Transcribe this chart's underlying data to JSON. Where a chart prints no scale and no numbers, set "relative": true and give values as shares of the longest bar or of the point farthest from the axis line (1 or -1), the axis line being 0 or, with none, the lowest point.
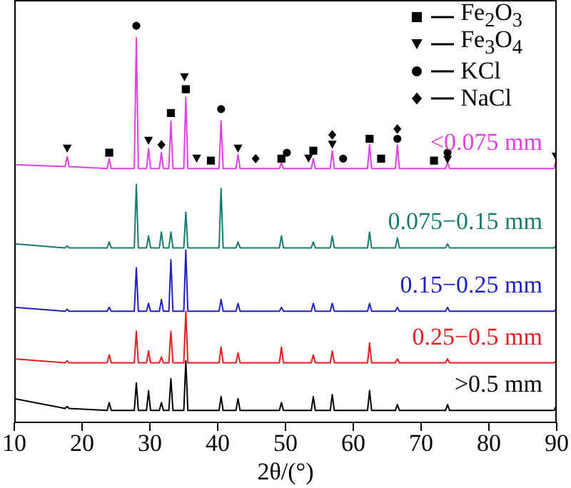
{
  "chart_data": {
    "type": "line",
    "relative": true,
    "xlabel": "2θ/(°)",
    "xlim": [
      10,
      90
    ],
    "xticks": [
      10,
      20,
      30,
      40,
      50,
      60,
      70,
      80,
      90
    ],
    "tick_labels": "x",
    "legend": "top right",
    "series": [
      {
        "name": "<0.075 mm",
        "type": "line",
        "color": "#e040e0",
        "x": [
          10,
          17.5,
          17.8,
          18.1,
          23.7,
          24.0,
          24.3,
          27.7,
          28.0,
          28.3,
          29.5,
          29.8,
          30.1,
          31.4,
          31.7,
          32.0,
          32.8,
          33.1,
          33.4,
          35.0,
          35.3,
          35.6,
          40.2,
          40.5,
          40.8,
          42.7,
          43.0,
          43.3,
          49.1,
          49.4,
          49.7,
          53.8,
          54.1,
          54.4,
          56.6,
          56.9,
          57.2,
          62.1,
          62.4,
          62.7,
          66.2,
          66.5,
          66.8,
          73.6,
          73.9,
          74.2,
          89.6,
          89.9,
          90
        ],
        "values": [
          0.65,
          0.645,
          0.67,
          0.645,
          0.64,
          0.665,
          0.64,
          0.64,
          0.97,
          0.64,
          0.64,
          0.69,
          0.64,
          0.64,
          0.68,
          0.64,
          0.64,
          0.76,
          0.64,
          0.64,
          0.82,
          0.64,
          0.64,
          0.76,
          0.64,
          0.64,
          0.675,
          0.64,
          0.64,
          0.655,
          0.64,
          0.64,
          0.665,
          0.64,
          0.64,
          0.685,
          0.64,
          0.64,
          0.7,
          0.64,
          0.64,
          0.7,
          0.64,
          0.64,
          0.655,
          0.64,
          0.64,
          0.66,
          0.64
        ]
      },
      {
        "name": "0.075−0.15 mm",
        "type": "line",
        "color": "#1a7a70",
        "x": [
          10,
          17.5,
          17.8,
          18.1,
          23.7,
          24.0,
          24.3,
          27.7,
          28.0,
          28.3,
          29.5,
          29.8,
          30.1,
          31.4,
          31.7,
          32.0,
          32.8,
          33.1,
          33.4,
          35.0,
          35.3,
          35.6,
          40.2,
          40.5,
          40.8,
          42.7,
          43.0,
          43.3,
          49.1,
          49.4,
          49.7,
          53.8,
          54.1,
          54.4,
          56.6,
          56.9,
          57.2,
          62.1,
          62.4,
          62.7,
          66.2,
          66.5,
          66.8,
          73.6,
          73.9,
          74.2,
          89.6,
          89.9,
          90
        ],
        "values": [
          0.45,
          0.44,
          0.445,
          0.44,
          0.44,
          0.455,
          0.44,
          0.44,
          0.6,
          0.44,
          0.44,
          0.47,
          0.44,
          0.44,
          0.48,
          0.44,
          0.44,
          0.48,
          0.44,
          0.44,
          0.53,
          0.44,
          0.44,
          0.59,
          0.44,
          0.44,
          0.455,
          0.44,
          0.44,
          0.47,
          0.44,
          0.44,
          0.455,
          0.44,
          0.44,
          0.47,
          0.44,
          0.44,
          0.48,
          0.44,
          0.44,
          0.465,
          0.44,
          0.44,
          0.45,
          0.44,
          0.44,
          0.445,
          0.44
        ]
      },
      {
        "name": "0.15−0.25 mm",
        "type": "line",
        "color": "#2020c0",
        "x": [
          10,
          17.5,
          17.8,
          18.1,
          23.7,
          24.0,
          24.3,
          27.7,
          28.0,
          28.3,
          29.5,
          29.8,
          30.1,
          31.4,
          31.7,
          32.0,
          32.8,
          33.1,
          33.4,
          35.0,
          35.3,
          35.6,
          40.2,
          40.5,
          40.8,
          42.7,
          43.0,
          43.3,
          49.1,
          49.4,
          49.7,
          53.8,
          54.1,
          54.4,
          56.6,
          56.9,
          57.2,
          62.1,
          62.4,
          62.7,
          66.2,
          66.5,
          66.8,
          73.6,
          73.9,
          74.2,
          89.6,
          89.9,
          90
        ],
        "values": [
          0.29,
          0.28,
          0.285,
          0.28,
          0.28,
          0.29,
          0.28,
          0.28,
          0.39,
          0.28,
          0.28,
          0.3,
          0.28,
          0.28,
          0.31,
          0.28,
          0.28,
          0.41,
          0.28,
          0.28,
          0.435,
          0.28,
          0.28,
          0.31,
          0.28,
          0.28,
          0.3,
          0.28,
          0.28,
          0.29,
          0.28,
          0.28,
          0.3,
          0.28,
          0.28,
          0.3,
          0.28,
          0.28,
          0.3,
          0.28,
          0.28,
          0.29,
          0.28,
          0.28,
          0.29,
          0.28,
          0.28,
          0.285,
          0.28
        ]
      },
      {
        "name": "0.25−0.5 mm",
        "type": "line",
        "color": "#e02020",
        "x": [
          10,
          17.5,
          17.8,
          18.1,
          23.7,
          24.0,
          24.3,
          27.7,
          28.0,
          28.3,
          29.5,
          29.8,
          30.1,
          31.4,
          31.7,
          32.0,
          32.8,
          33.1,
          33.4,
          35.0,
          35.3,
          35.6,
          40.2,
          40.5,
          40.8,
          42.7,
          43.0,
          43.3,
          49.1,
          49.4,
          49.7,
          53.8,
          54.1,
          54.4,
          56.6,
          56.9,
          57.2,
          62.1,
          62.4,
          62.7,
          66.2,
          66.5,
          66.8,
          73.6,
          73.9,
          74.2,
          89.6,
          89.9,
          90
        ],
        "values": [
          0.16,
          0.15,
          0.155,
          0.15,
          0.15,
          0.17,
          0.15,
          0.15,
          0.23,
          0.15,
          0.15,
          0.18,
          0.15,
          0.15,
          0.165,
          0.15,
          0.15,
          0.23,
          0.15,
          0.15,
          0.28,
          0.15,
          0.15,
          0.19,
          0.15,
          0.15,
          0.175,
          0.15,
          0.15,
          0.19,
          0.15,
          0.15,
          0.17,
          0.15,
          0.15,
          0.18,
          0.15,
          0.15,
          0.2,
          0.15,
          0.15,
          0.16,
          0.15,
          0.15,
          0.16,
          0.15,
          0.15,
          0.155,
          0.15
        ]
      },
      {
        "name": ">0.5 mm",
        "type": "line",
        "color": "#000000",
        "x": [
          10,
          17.5,
          17.8,
          18.1,
          23.7,
          24.0,
          24.3,
          27.7,
          28.0,
          28.3,
          29.5,
          29.8,
          30.1,
          31.4,
          31.7,
          32.0,
          32.8,
          33.1,
          33.4,
          35.0,
          35.3,
          35.6,
          40.2,
          40.5,
          40.8,
          42.7,
          43.0,
          43.3,
          49.1,
          49.4,
          49.7,
          53.8,
          54.1,
          54.4,
          56.6,
          56.9,
          57.2,
          62.1,
          62.4,
          62.7,
          66.2,
          66.5,
          66.8,
          73.6,
          73.9,
          74.2,
          89.6,
          89.9,
          90
        ],
        "values": [
          0.06,
          0.035,
          0.04,
          0.035,
          0.03,
          0.05,
          0.03,
          0.03,
          0.1,
          0.03,
          0.03,
          0.08,
          0.03,
          0.03,
          0.05,
          0.03,
          0.03,
          0.11,
          0.03,
          0.03,
          0.155,
          0.03,
          0.03,
          0.065,
          0.03,
          0.03,
          0.06,
          0.03,
          0.03,
          0.05,
          0.03,
          0.03,
          0.065,
          0.03,
          0.03,
          0.07,
          0.03,
          0.03,
          0.08,
          0.03,
          0.03,
          0.045,
          0.03,
          0.03,
          0.045,
          0.03,
          0.03,
          0.04,
          0.03
        ]
      },
      {
        "name": "Fe$_{2}$O$_{3}$",
        "type": "scatter",
        "marker": "square",
        "color": "#000000",
        "x": [
          24.0,
          33.1,
          35.3,
          39.0,
          49.4,
          54.1,
          62.4,
          64.1,
          71.9
        ],
        "values": [
          0.68,
          0.78,
          0.84,
          0.66,
          0.665,
          0.685,
          0.715,
          0.665,
          0.66
        ]
      },
      {
        "name": "Fe$_{3}$O$_{4}$",
        "type": "scatter",
        "marker": "triangle",
        "color": "#000000",
        "x": [
          17.8,
          29.8,
          35.1,
          36.9,
          43.0,
          53.4,
          56.9,
          73.9,
          89.9
        ],
        "values": [
          0.69,
          0.71,
          0.87,
          0.665,
          0.69,
          0.665,
          0.7,
          0.662,
          0.67
        ]
      },
      {
        "name": "KCl",
        "type": "scatter",
        "marker": "circle",
        "color": "#000000",
        "x": [
          28.0,
          40.5,
          50.2,
          58.5,
          66.5,
          73.9
        ],
        "values": [
          1.0,
          0.79,
          0.68,
          0.665,
          0.715,
          0.68
        ]
      },
      {
        "name": "NaCl",
        "type": "scatter",
        "marker": "diamond",
        "color": "#000000",
        "x": [
          31.7,
          45.6,
          56.9,
          66.5
        ],
        "values": [
          0.7,
          0.665,
          0.725,
          0.74
        ]
      }
    ]
  }
}
